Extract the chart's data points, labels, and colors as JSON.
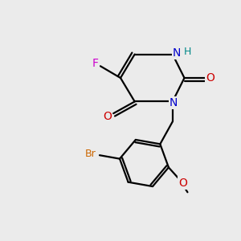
{
  "background_color": "#ebebeb",
  "atom_colors": {
    "C": "#000000",
    "N": "#0000cc",
    "O": "#cc0000",
    "F": "#cc00cc",
    "Br": "#cc6600",
    "H": "#008888"
  },
  "figsize": [
    3.0,
    3.0
  ],
  "dpi": 100,
  "lw": 1.6,
  "fontsize": 10
}
